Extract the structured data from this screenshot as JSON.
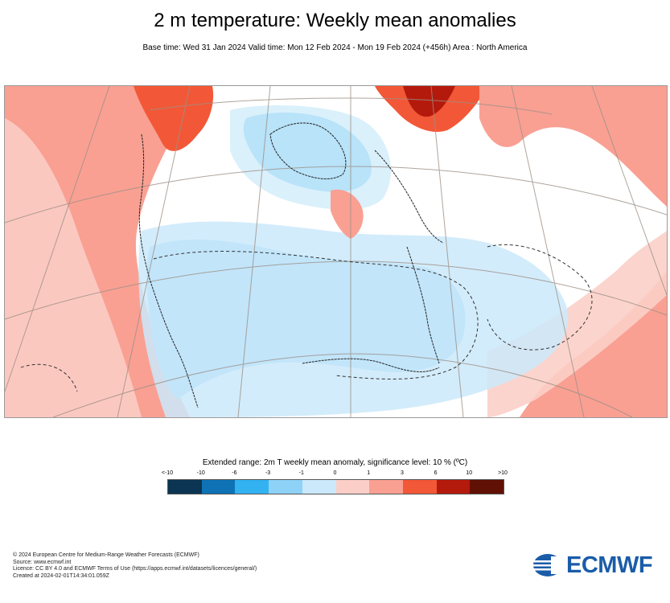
{
  "header": {
    "title": "2 m temperature: Weekly mean anomalies",
    "subtitle": "Base time: Wed 31 Jan 2024 Valid time: Mon 12 Feb 2024 - Mon 19 Feb 2024 (+456h) Area : North America"
  },
  "legend": {
    "title": "Extended range: 2m T weekly mean anomaly, significance level: 10 % (ºC)",
    "ticks": [
      "<-10",
      "-10",
      "-6",
      "-3",
      "-1",
      "0",
      "1",
      "3",
      "6",
      "10",
      ">10"
    ],
    "colors": [
      "#0b3552",
      "#0e72b5",
      "#33b2f2",
      "#8ed2f7",
      "#cbe9fa",
      "#fbcfc8",
      "#f9a093",
      "#f25837",
      "#b41a0c",
      "#611005"
    ]
  },
  "footer": {
    "line1": "© 2024 European Centre for Medium-Range Weather Forecasts (ECMWF)",
    "line2": "Source: www.ecmwf.int",
    "line3": "Licence: CC BY 4.0 and ECMWF Terms of Use (https://apps.ecmwf.int/datasets/licences/general/)",
    "line4": "Created at 2024-02-01T14:34:01.059Z"
  },
  "logo": {
    "text": "ECMWF",
    "color": "#1a5ca8"
  }
}
